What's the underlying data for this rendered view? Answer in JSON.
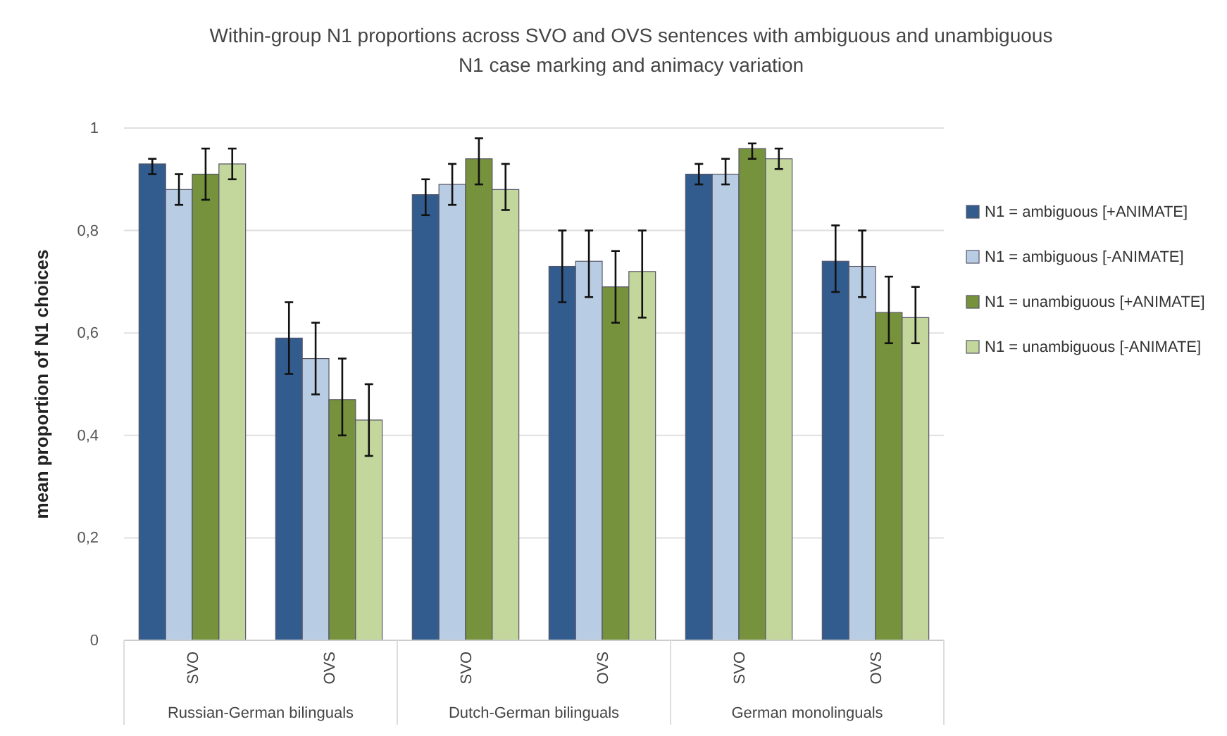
{
  "chart_data": {
    "type": "bar",
    "title": "Within-group N1 proportions across SVO and OVS sentences with ambiguous and unambiguous N1 case marking and animacy variation",
    "ylabel": "mean proportion of N1 choices",
    "categories": [
      "SVO",
      "OVS",
      "SVO",
      "OVS",
      "SVO",
      "OVS"
    ],
    "annotations": [
      "Russian-German bilinguals",
      "Dutch-German bilinguals",
      "German monolinguals"
    ],
    "series": [
      {
        "name": "N1 = ambiguous [+ANIMATE]",
        "color": "#335c8e",
        "values": [
          0.93,
          0.59,
          0.87,
          0.73,
          0.91,
          0.74
        ],
        "errors": [
          [
            0.91,
            0.94
          ],
          [
            0.52,
            0.66
          ],
          [
            0.83,
            0.9
          ],
          [
            0.66,
            0.8
          ],
          [
            0.89,
            0.93
          ],
          [
            0.68,
            0.81
          ]
        ]
      },
      {
        "name": "N1 = ambiguous [-ANIMATE]",
        "color": "#b8cde4",
        "values": [
          0.88,
          0.55,
          0.89,
          0.74,
          0.91,
          0.73
        ],
        "errors": [
          [
            0.85,
            0.91
          ],
          [
            0.48,
            0.62
          ],
          [
            0.85,
            0.93
          ],
          [
            0.67,
            0.8
          ],
          [
            0.89,
            0.94
          ],
          [
            0.67,
            0.8
          ]
        ]
      },
      {
        "name": "N1 = unambiguous [+ANIMATE]",
        "color": "#76923c",
        "values": [
          0.91,
          0.47,
          0.94,
          0.69,
          0.96,
          0.64
        ],
        "errors": [
          [
            0.86,
            0.96
          ],
          [
            0.4,
            0.55
          ],
          [
            0.89,
            0.98
          ],
          [
            0.62,
            0.76
          ],
          [
            0.94,
            0.97
          ],
          [
            0.58,
            0.71
          ]
        ]
      },
      {
        "name": "N1 = unambiguous [-ANIMATE]",
        "color": "#c3d69b",
        "values": [
          0.93,
          0.43,
          0.88,
          0.72,
          0.94,
          0.63
        ],
        "errors": [
          [
            0.9,
            0.96
          ],
          [
            0.36,
            0.5
          ],
          [
            0.84,
            0.93
          ],
          [
            0.63,
            0.8
          ],
          [
            0.92,
            0.96
          ],
          [
            0.58,
            0.69
          ]
        ]
      }
    ],
    "ylim": [
      0,
      1
    ],
    "yticks": [
      0,
      {
        "value": 0.2,
        "label": "0,2"
      },
      {
        "value": 0.4,
        "label": "0,4"
      },
      {
        "value": 0.6,
        "label": "0,6"
      },
      {
        "value": 0.8,
        "label": "0,8"
      },
      1
    ],
    "grid": "y",
    "legend": "right"
  }
}
